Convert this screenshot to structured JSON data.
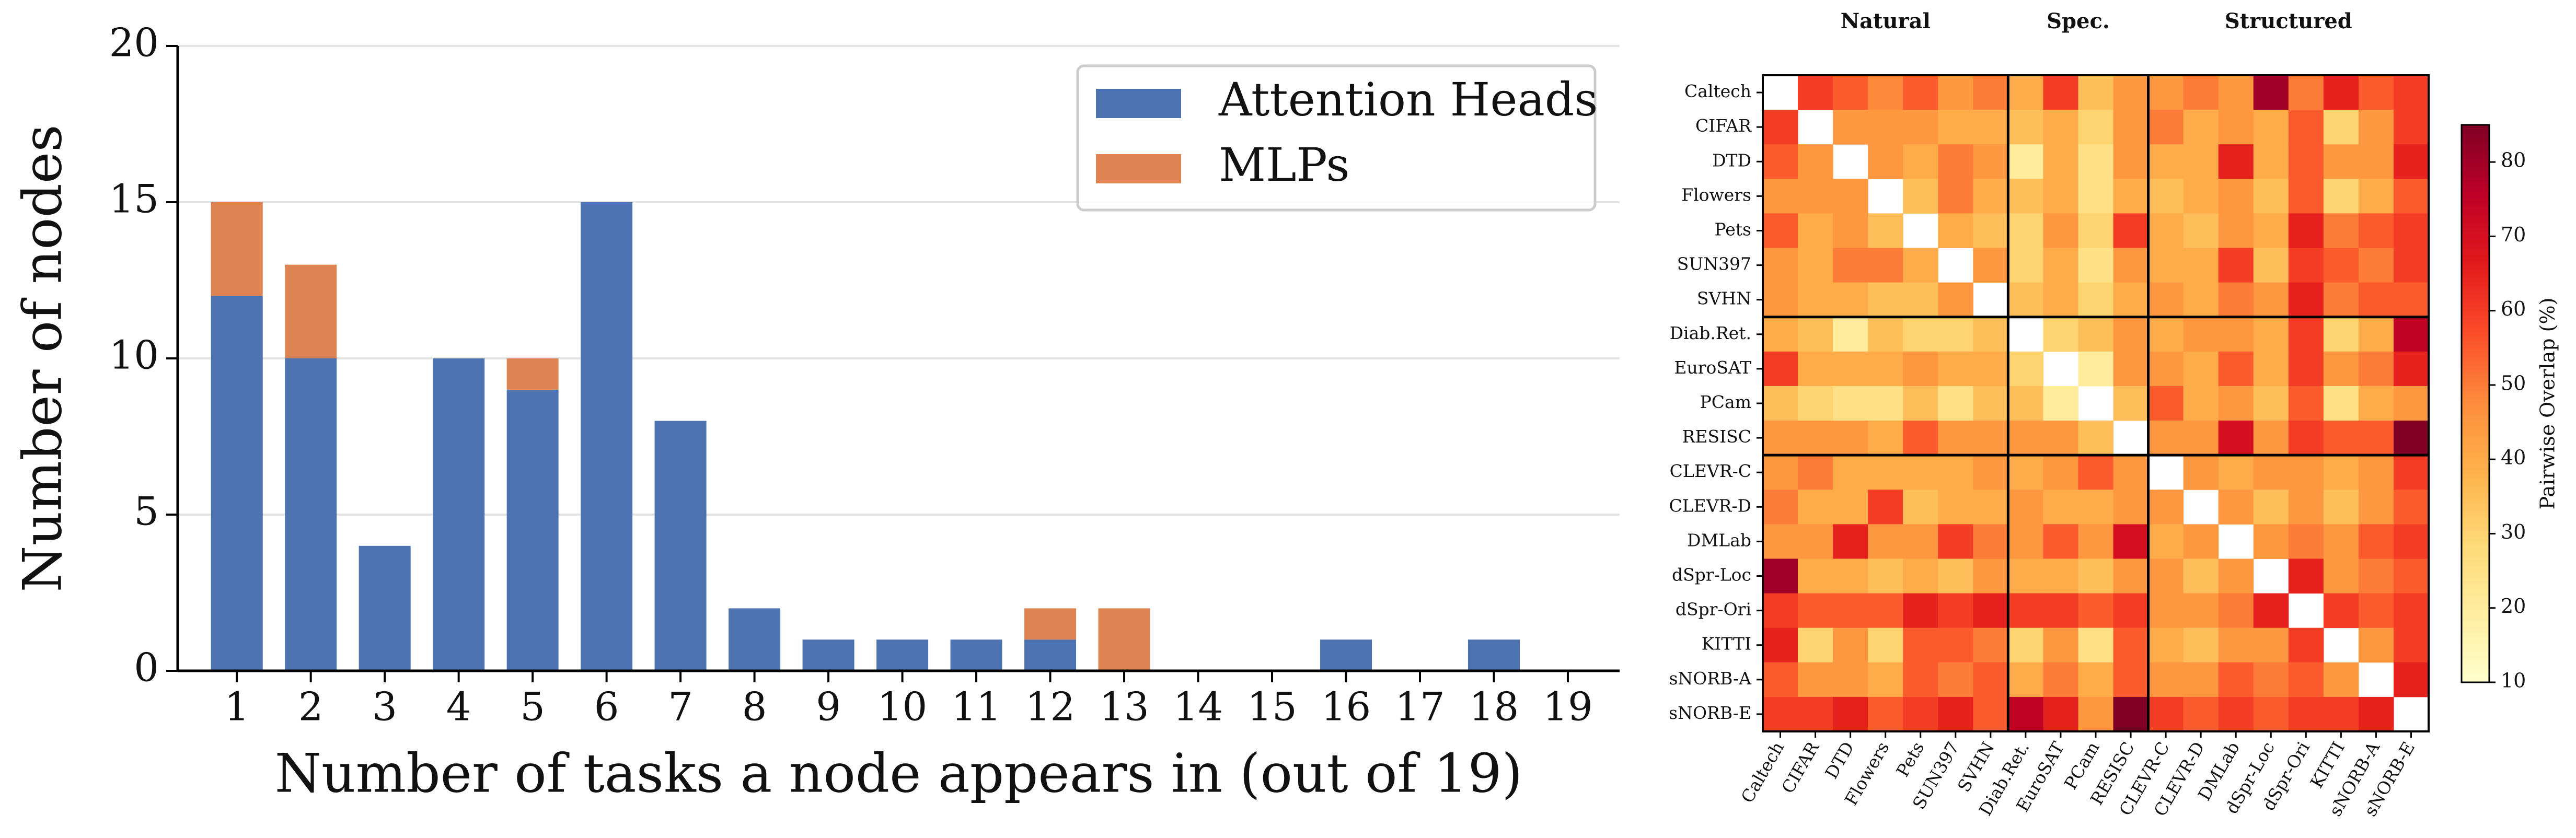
{
  "chart_data": [
    {
      "type": "stacked-bar",
      "x_label": "Number of tasks a node appears in (out of 19)",
      "y_label": "Number of nodes",
      "categories": [
        1,
        2,
        3,
        4,
        5,
        6,
        7,
        8,
        9,
        10,
        11,
        12,
        13,
        14,
        15,
        16,
        17,
        18,
        19
      ],
      "series": [
        {
          "name": "Attention Heads",
          "color": "#4c72b0",
          "values": [
            12,
            10,
            4,
            10,
            9,
            15,
            8,
            2,
            1,
            1,
            1,
            1,
            0,
            0,
            0,
            1,
            0,
            1,
            0
          ]
        },
        {
          "name": "MLPs",
          "color": "#dd8452",
          "values": [
            3,
            3,
            0,
            0,
            1,
            0,
            0,
            0,
            0,
            0,
            0,
            1,
            2,
            0,
            0,
            0,
            0,
            0,
            0
          ]
        }
      ],
      "ylim": [
        0,
        20
      ],
      "yticks": [
        0,
        5,
        10,
        15,
        20
      ],
      "grid": true,
      "legend": "upper right"
    },
    {
      "type": "heatmap",
      "categories": [
        "Caltech",
        "CIFAR",
        "DTD",
        "Flowers",
        "Pets",
        "SUN397",
        "SVHN",
        "Diab.Ret.",
        "EuroSAT",
        "PCam",
        "RESISC",
        "CLEVR-C",
        "CLEVR-D",
        "DMLab",
        "dSpr-Loc",
        "dSpr-Ori",
        "KITTI",
        "sNORB-A",
        "sNORB-E"
      ],
      "groups": [
        {
          "name": "Natural",
          "color": "#1f5fa8",
          "size": 7
        },
        {
          "name": "Spec.",
          "color": "#b0102a",
          "size": 4
        },
        {
          "name": "Structured",
          "color": "#1e7a2e",
          "size": 8
        }
      ],
      "values": [
        [
          null,
          60,
          55,
          48,
          55,
          45,
          50,
          40,
          60,
          35,
          45,
          45,
          50,
          45,
          80,
          50,
          65,
          55,
          60
        ],
        [
          60,
          null,
          45,
          45,
          45,
          40,
          40,
          35,
          40,
          30,
          45,
          50,
          40,
          45,
          40,
          55,
          30,
          45,
          60
        ],
        [
          55,
          45,
          null,
          45,
          40,
          50,
          45,
          20,
          40,
          25,
          45,
          40,
          40,
          65,
          40,
          55,
          45,
          45,
          65
        ],
        [
          45,
          45,
          45,
          null,
          35,
          50,
          40,
          35,
          40,
          25,
          40,
          35,
          40,
          45,
          35,
          55,
          30,
          40,
          55
        ],
        [
          55,
          40,
          45,
          35,
          null,
          40,
          35,
          30,
          45,
          30,
          60,
          40,
          35,
          45,
          40,
          65,
          50,
          55,
          60
        ],
        [
          45,
          40,
          50,
          50,
          40,
          null,
          45,
          30,
          40,
          25,
          45,
          40,
          40,
          60,
          35,
          60,
          55,
          50,
          60
        ],
        [
          45,
          40,
          40,
          35,
          35,
          45,
          null,
          35,
          40,
          30,
          40,
          45,
          40,
          50,
          45,
          65,
          50,
          55,
          55
        ],
        [
          40,
          35,
          20,
          35,
          30,
          30,
          35,
          null,
          30,
          35,
          45,
          40,
          45,
          45,
          40,
          60,
          30,
          40,
          75
        ],
        [
          60,
          40,
          40,
          40,
          45,
          40,
          40,
          30,
          null,
          20,
          45,
          45,
          40,
          55,
          40,
          60,
          45,
          50,
          65
        ],
        [
          35,
          30,
          25,
          25,
          35,
          25,
          35,
          35,
          20,
          null,
          35,
          55,
          40,
          45,
          35,
          55,
          25,
          40,
          45
        ],
        [
          45,
          45,
          45,
          40,
          55,
          45,
          45,
          45,
          45,
          35,
          null,
          45,
          45,
          70,
          45,
          60,
          55,
          55,
          85
        ],
        [
          45,
          50,
          40,
          40,
          40,
          40,
          45,
          40,
          45,
          55,
          45,
          null,
          45,
          40,
          45,
          45,
          40,
          45,
          60
        ],
        [
          50,
          40,
          40,
          60,
          35,
          40,
          40,
          45,
          40,
          40,
          45,
          45,
          null,
          45,
          35,
          45,
          35,
          45,
          55
        ],
        [
          45,
          45,
          65,
          45,
          45,
          60,
          50,
          45,
          55,
          45,
          70,
          40,
          45,
          null,
          45,
          50,
          45,
          55,
          60
        ],
        [
          80,
          40,
          40,
          35,
          40,
          35,
          45,
          40,
          40,
          35,
          45,
          45,
          35,
          45,
          null,
          65,
          45,
          50,
          55
        ],
        [
          60,
          55,
          55,
          55,
          65,
          60,
          65,
          60,
          60,
          55,
          60,
          45,
          45,
          50,
          65,
          null,
          60,
          55,
          60
        ],
        [
          65,
          30,
          45,
          30,
          55,
          55,
          50,
          30,
          45,
          25,
          55,
          40,
          35,
          45,
          45,
          60,
          null,
          45,
          60
        ],
        [
          55,
          45,
          45,
          40,
          55,
          50,
          55,
          40,
          50,
          40,
          55,
          45,
          45,
          55,
          50,
          55,
          45,
          null,
          65
        ],
        [
          60,
          60,
          65,
          55,
          60,
          65,
          55,
          75,
          65,
          45,
          85,
          60,
          55,
          60,
          55,
          60,
          60,
          65,
          null
        ]
      ],
      "colormap": "YlOrRd",
      "colorbar": {
        "label": "Pairwise Overlap (%)",
        "lim": [
          10,
          85
        ],
        "ticks": [
          10,
          20,
          30,
          40,
          50,
          60,
          70,
          80
        ]
      }
    }
  ]
}
